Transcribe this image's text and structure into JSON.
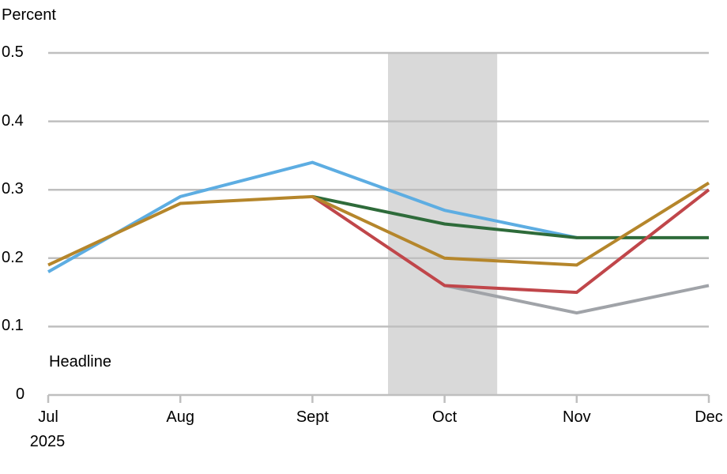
{
  "chart_data": {
    "type": "line",
    "title": "",
    "ylabel": "Percent",
    "xlabel": "",
    "annotation": "Headline",
    "categories": [
      "Jul",
      "Aug",
      "Sept",
      "Oct",
      "Nov",
      "Dec"
    ],
    "x_year_label": "2025",
    "ylim": [
      0,
      0.5
    ],
    "yticks": [
      "0",
      "0.1",
      "0.2",
      "0.3",
      "0.4",
      "0.5"
    ],
    "grid": true,
    "shaded_region": {
      "from": "Sept-Oct midpoint",
      "to": "Oct-Nov midpoint",
      "color": "#d9d9d9"
    },
    "series": [
      {
        "name": "series-blue",
        "color": "#5dade2",
        "values": [
          0.18,
          0.29,
          0.34,
          0.27,
          0.23,
          null
        ]
      },
      {
        "name": "series-green",
        "color": "#2e6b3a",
        "values": [
          null,
          null,
          0.29,
          0.25,
          0.23,
          0.23
        ]
      },
      {
        "name": "series-gray",
        "color": "#a0a3a8",
        "values": [
          null,
          null,
          null,
          0.16,
          0.12,
          0.16
        ]
      },
      {
        "name": "series-red",
        "color": "#c0464a",
        "values": [
          null,
          null,
          0.29,
          0.16,
          0.15,
          0.3
        ]
      },
      {
        "name": "series-gold",
        "color": "#b5862b",
        "values": [
          0.19,
          0.28,
          0.29,
          0.2,
          0.19,
          0.31
        ]
      }
    ]
  },
  "labels": {
    "ytitle": "Percent",
    "note": "Headline",
    "year": "2025"
  }
}
